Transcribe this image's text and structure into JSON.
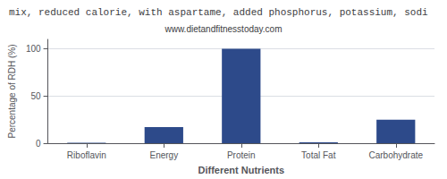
{
  "chart_data": {
    "type": "bar",
    "title": "mix, reduced calorie, with aspartame, added phosphorus, potassium, sodi",
    "subtitle": "www.dietandfitnesstoday.com",
    "categories": [
      "Riboflavin",
      "Energy",
      "Protein",
      "Total Fat",
      "Carbohydrate"
    ],
    "values": [
      0.5,
      17,
      100,
      1,
      25
    ],
    "color": "#2d4a8a",
    "xlabel": "Different Nutrients",
    "ylabel": "Percentage of RDH (%)",
    "ylim": [
      0,
      110
    ],
    "yticks": [
      0,
      50,
      100
    ],
    "grid": true
  }
}
